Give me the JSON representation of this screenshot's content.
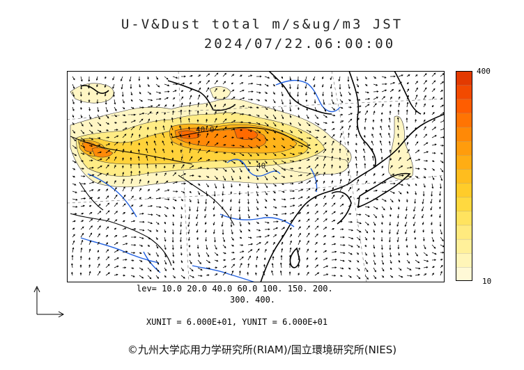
{
  "header": {
    "title": "U-V&Dust  total  m/s&ug/m3  JST",
    "timestamp": "2024/07/22.06:00:00"
  },
  "colorbar": {
    "max_label": "400",
    "min_label": "10",
    "colors": [
      "#fff9d6",
      "#fff5b8",
      "#fff09a",
      "#ffea7e",
      "#ffe35f",
      "#ffd93f",
      "#ffcc2a",
      "#ffbd1e",
      "#ffad14",
      "#ff9c0c",
      "#ff8906",
      "#ff7403",
      "#ff5d00",
      "#f24a00",
      "#e33a00"
    ]
  },
  "map": {
    "contour_labels": [
      "40.0",
      "40"
    ],
    "land_color": "#ffffff",
    "river_color": "#1f5fe0",
    "coast_color": "#000000"
  },
  "levels": {
    "line1": "lev= 10.0 20.0 40.0 60.0 100. 150. 200.",
    "line2": "300. 400."
  },
  "units": "XUNIT = 6.000E+01, YUNIT = 6.000E+01",
  "credit": "©九州大学応用力学研究所(RIAM)/国立環境研究所(NIES)"
}
